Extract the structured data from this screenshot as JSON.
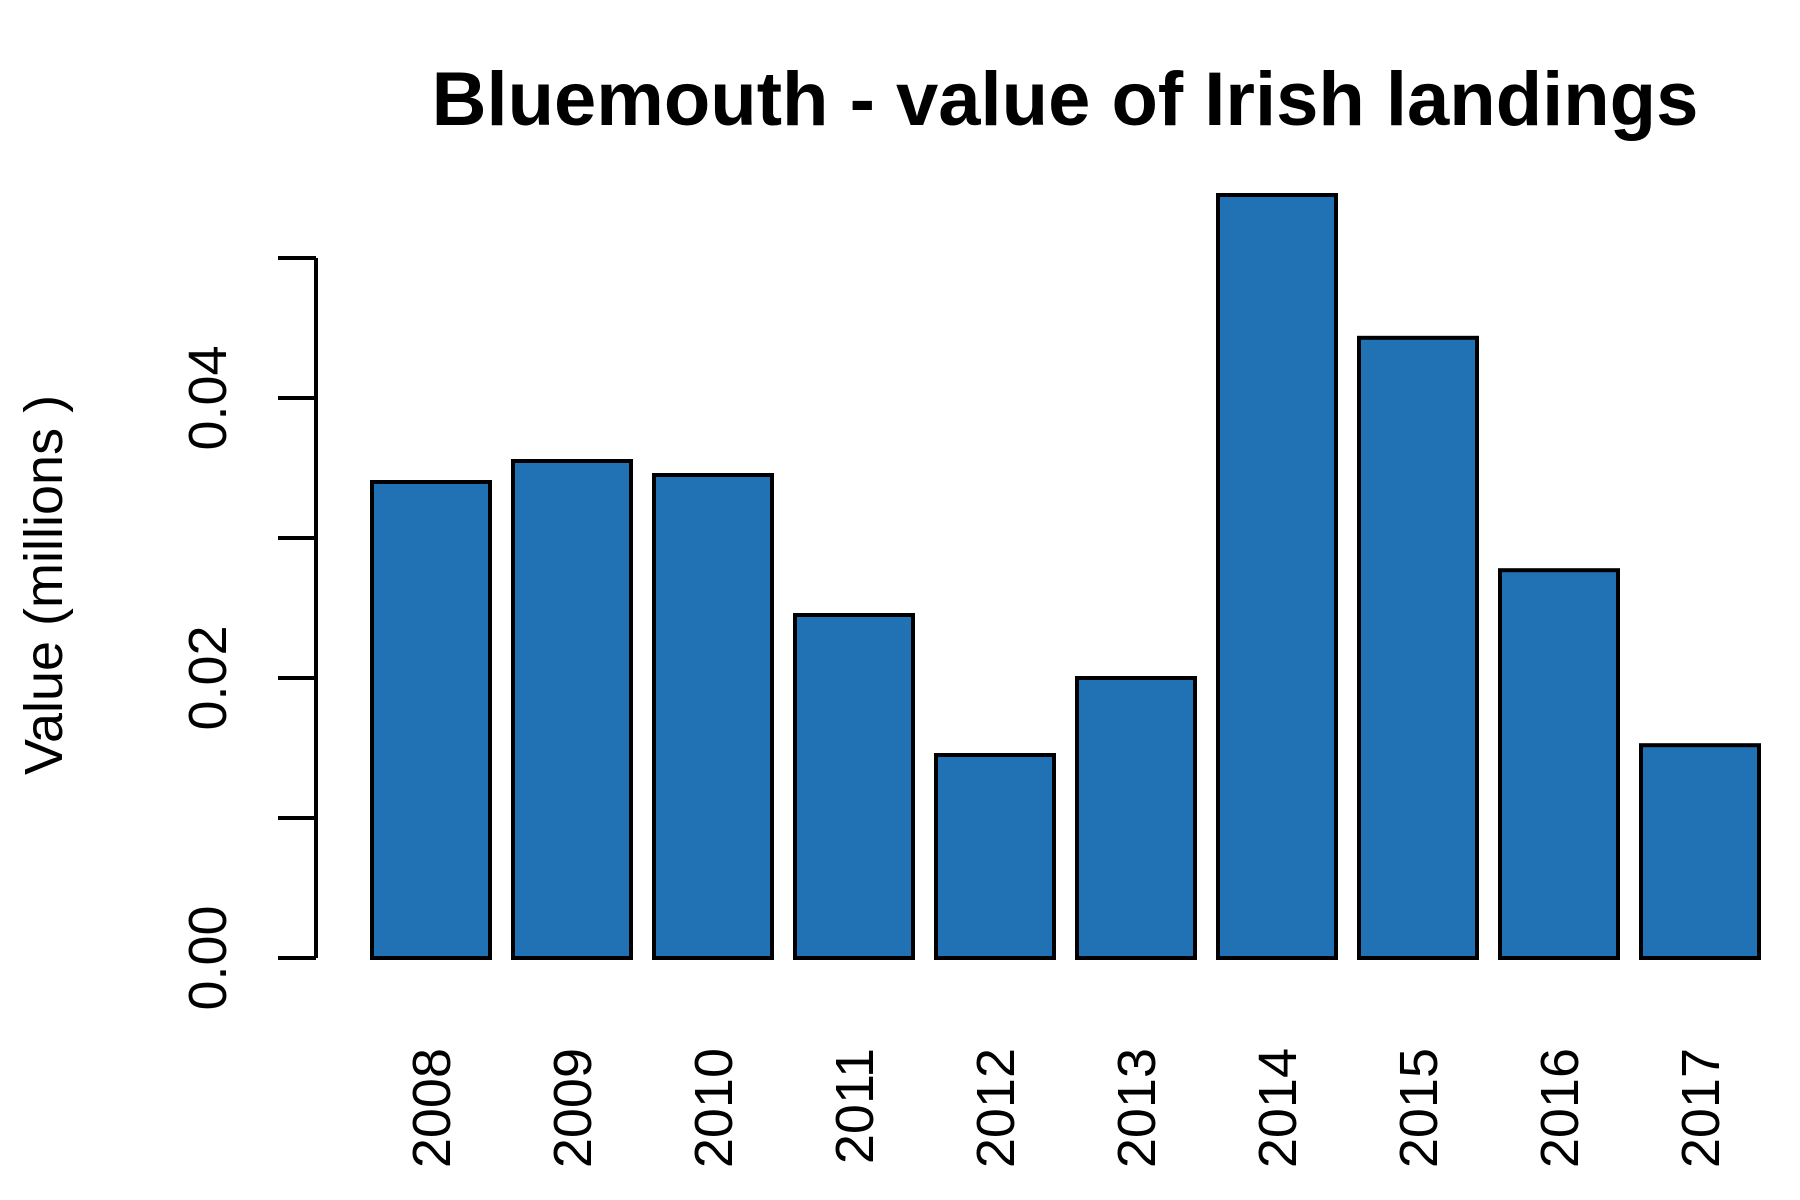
{
  "chart_data": {
    "type": "bar",
    "title": "Bluemouth - value of Irish landings",
    "xlabel": "",
    "ylabel": "Value (millions )",
    "categories": [
      "2008",
      "2009",
      "2010",
      "2011",
      "2012",
      "2013",
      "2014",
      "2015",
      "2016",
      "2017"
    ],
    "values": [
      0.034,
      0.0355,
      0.0345,
      0.0245,
      0.0145,
      0.02,
      0.0545,
      0.0443,
      0.0277,
      0.0152
    ],
    "ylim": [
      0,
      0.05
    ],
    "yticks": [
      0.0,
      0.01,
      0.02,
      0.03,
      0.04,
      0.05
    ],
    "ytick_labels": [
      "0.00",
      "",
      "0.02",
      "",
      "0.04",
      ""
    ],
    "bar_color": "#2171b5",
    "grid": false,
    "legend": "none"
  }
}
